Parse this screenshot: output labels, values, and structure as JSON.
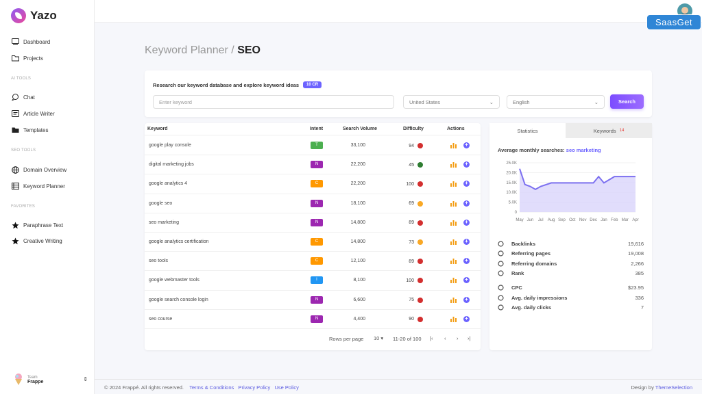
{
  "brand": {
    "name": "Yazo"
  },
  "nav": {
    "dashboard": "Dashboard",
    "projects": "Projects",
    "ai_tools_header": "AI TOOLS",
    "chat": "Chat",
    "article_writer": "Article Writer",
    "templates": "Templates",
    "seo_tools_header": "SEO TOOLS",
    "domain_overview": "Domain Overview",
    "keyword_planner": "Keyword Planner",
    "favorites_header": "FAVORITES",
    "paraphrase_text": "Paraphrase Text",
    "creative_writing": "Creative Writing"
  },
  "team": {
    "label": "Team",
    "name": "Frappe"
  },
  "watermark": "SaasGet",
  "page": {
    "title_prefix": "Keyword Planner /",
    "title_strong": "SEO"
  },
  "search": {
    "description": "Research our keyword database and explore keyword ideas",
    "credits": "10 CR",
    "placeholder": "Enter keyword",
    "country": "United States",
    "language": "English",
    "button": "Search"
  },
  "table": {
    "headers": {
      "keyword": "Keyword",
      "intent": "Intent",
      "volume": "Search Volume",
      "difficulty": "Difficulty",
      "actions": "Actions"
    },
    "rows": [
      {
        "keyword": "google play console",
        "intent": "T",
        "volume": "33,100",
        "difficulty": "94"
      },
      {
        "keyword": "digital marketing jobs",
        "intent": "N",
        "volume": "22,200",
        "difficulty": "45"
      },
      {
        "keyword": "google analytics 4",
        "intent": "C",
        "volume": "22,200",
        "difficulty": "100"
      },
      {
        "keyword": "google seo",
        "intent": "N",
        "volume": "18,100",
        "difficulty": "69"
      },
      {
        "keyword": "seo marketing",
        "intent": "N",
        "volume": "14,800",
        "difficulty": "89"
      },
      {
        "keyword": "google analytics certification",
        "intent": "C",
        "volume": "14,800",
        "difficulty": "73"
      },
      {
        "keyword": "seo tools",
        "intent": "C",
        "volume": "12,100",
        "difficulty": "89"
      },
      {
        "keyword": "google webmaster tools",
        "intent": "I",
        "volume": "8,100",
        "difficulty": "100"
      },
      {
        "keyword": "google search console login",
        "intent": "N",
        "volume": "6,600",
        "difficulty": "75"
      },
      {
        "keyword": "seo course",
        "intent": "N",
        "volume": "4,400",
        "difficulty": "90"
      }
    ],
    "pager": {
      "label": "Rows per page",
      "size": "10",
      "range": "11-20 of 100"
    }
  },
  "colors": {
    "intent_T": "#4caf50",
    "intent_N": "#9c27b0",
    "intent_C": "#ff9800",
    "intent_I": "#2196f3",
    "diff_red": "#d32f2f",
    "diff_green": "#2e7d32",
    "diff_orange": "#f9a825",
    "accent": "#6c63ff"
  },
  "stats": {
    "tab_statistics": "Statistics",
    "tab_keywords": "Keywords",
    "keywords_count": "14",
    "avg_label": "Average monthly searches:",
    "avg_keyword": "seo marketing",
    "metrics": [
      {
        "label": "Backlinks",
        "value": "19,616"
      },
      {
        "label": "Referring pages",
        "value": "19,008"
      },
      {
        "label": "Referring domains",
        "value": "2,266"
      },
      {
        "label": "Rank",
        "value": "385"
      },
      {
        "label": "CPC",
        "value": "$23.95"
      },
      {
        "label": "Avg. daily impressions",
        "value": "336"
      },
      {
        "label": "Avg. daily clicks",
        "value": "7"
      }
    ]
  },
  "chart_data": {
    "type": "area",
    "title": "Average monthly searches: seo marketing",
    "categories": [
      "May",
      "Jun",
      "Jul",
      "Aug",
      "Sep",
      "Oct",
      "Nov",
      "Dec",
      "Jan",
      "Feb",
      "Mar",
      "Apr"
    ],
    "x": [
      0,
      0.5,
      1,
      1.5,
      2,
      3,
      4,
      5,
      6,
      7,
      7.5,
      8,
      9,
      10,
      11
    ],
    "values": [
      22000,
      14000,
      13000,
      11500,
      13000,
      14800,
      14800,
      14800,
      14800,
      14800,
      18000,
      14800,
      18000,
      18000,
      18000
    ],
    "yticks": [
      "25.0K",
      "20.0K",
      "15.0K",
      "10.0K",
      "5.0K",
      "0"
    ],
    "ylim": [
      0,
      25000
    ],
    "xlabel": "",
    "ylabel": ""
  },
  "footer": {
    "copyright": "© 2024 Frappé. All rights reserved.",
    "links": [
      "Terms & Conditions",
      "Privacy Policy",
      "Use Policy"
    ],
    "design_by": "Design by",
    "designer": "ThemeSelection"
  }
}
